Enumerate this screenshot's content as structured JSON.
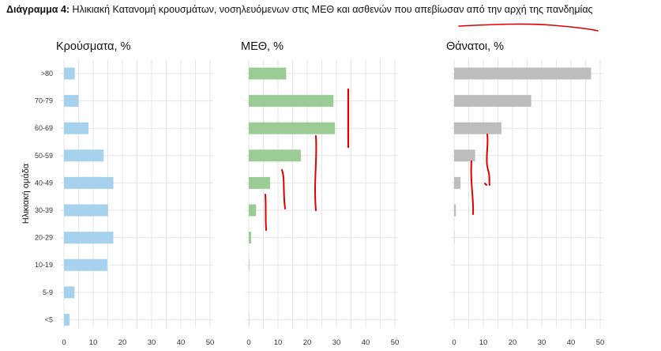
{
  "caption": {
    "label": "Διάγραμμα 4:",
    "text": " Ηλικιακή Κατανομή κρουσμάτων, νοσηλευόμενων στις ΜΕΘ και ασθενών που απεβίωσαν από την αρχή της πανδημίας"
  },
  "chart_data": {
    "type": "bar",
    "orientation": "horizontal",
    "ylabel": "Ηλικιακή ομάδα",
    "categories": [
      ">80",
      "70-79",
      "60-69",
      "50-59",
      "40-49",
      "30-39",
      "20-29",
      "10-19",
      "5-9",
      "<5"
    ],
    "xlim": [
      0,
      50
    ],
    "xticks": [
      0,
      10,
      20,
      30,
      40,
      50
    ],
    "panels": [
      {
        "title": "Κρούσματα, %",
        "color": "#a6d2ee",
        "values": [
          3.7,
          5.0,
          8.4,
          13.6,
          16.9,
          15.1,
          16.9,
          14.8,
          3.6,
          1.9
        ]
      },
      {
        "title": "ΜΕΘ, %",
        "color": "#9ccc96",
        "values": [
          12.8,
          29.0,
          29.5,
          17.8,
          7.3,
          2.5,
          0.8,
          0.2,
          0.0,
          0.1
        ]
      },
      {
        "title": "Θάνατοι, %",
        "color": "#bdbdbd",
        "values": [
          46.9,
          26.4,
          16.2,
          7.2,
          2.2,
          0.6,
          0.1,
          0.0,
          0.0,
          0.0
        ]
      }
    ]
  }
}
